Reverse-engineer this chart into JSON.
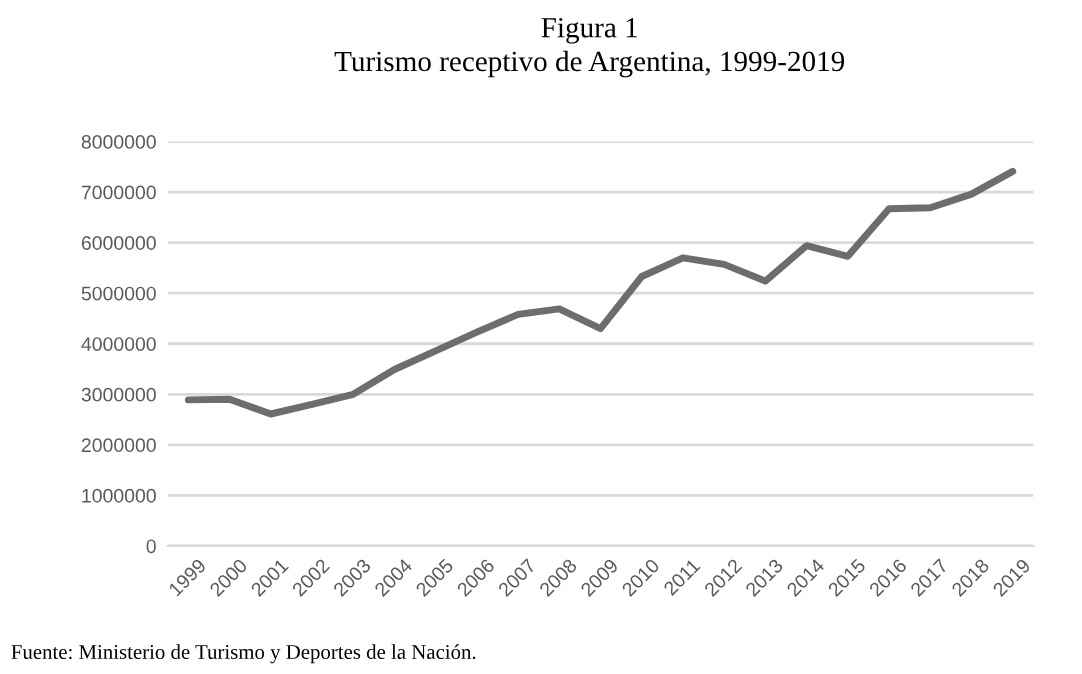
{
  "chart_data": {
    "type": "line",
    "title": "Figura 1",
    "subtitle": "Turismo receptivo de Argentina, 1999-2019",
    "categories": [
      "1999",
      "2000",
      "2001",
      "2002",
      "2003",
      "2004",
      "2005",
      "2006",
      "2007",
      "2008",
      "2009",
      "2010",
      "2011",
      "2012",
      "2013",
      "2014",
      "2015",
      "2016",
      "2017",
      "2018",
      "2019"
    ],
    "series": [
      {
        "color": "#6d6d6d",
        "values": [
          2890000,
          2900000,
          2610000,
          2800000,
          3000000,
          3490000,
          3860000,
          4230000,
          4580000,
          4690000,
          4300000,
          5330000,
          5700000,
          5570000,
          5240000,
          5940000,
          5730000,
          6670000,
          6690000,
          6960000,
          7410000
        ]
      }
    ],
    "ylim": [
      0,
      8000000
    ],
    "yticks": [
      0,
      1000000,
      2000000,
      3000000,
      4000000,
      5000000,
      6000000,
      7000000,
      8000000
    ],
    "grid": "y",
    "marker": "none",
    "line_style": "solid",
    "annotations": [
      "Fuente: Ministerio de Turismo y Deportes de la Nación."
    ]
  }
}
